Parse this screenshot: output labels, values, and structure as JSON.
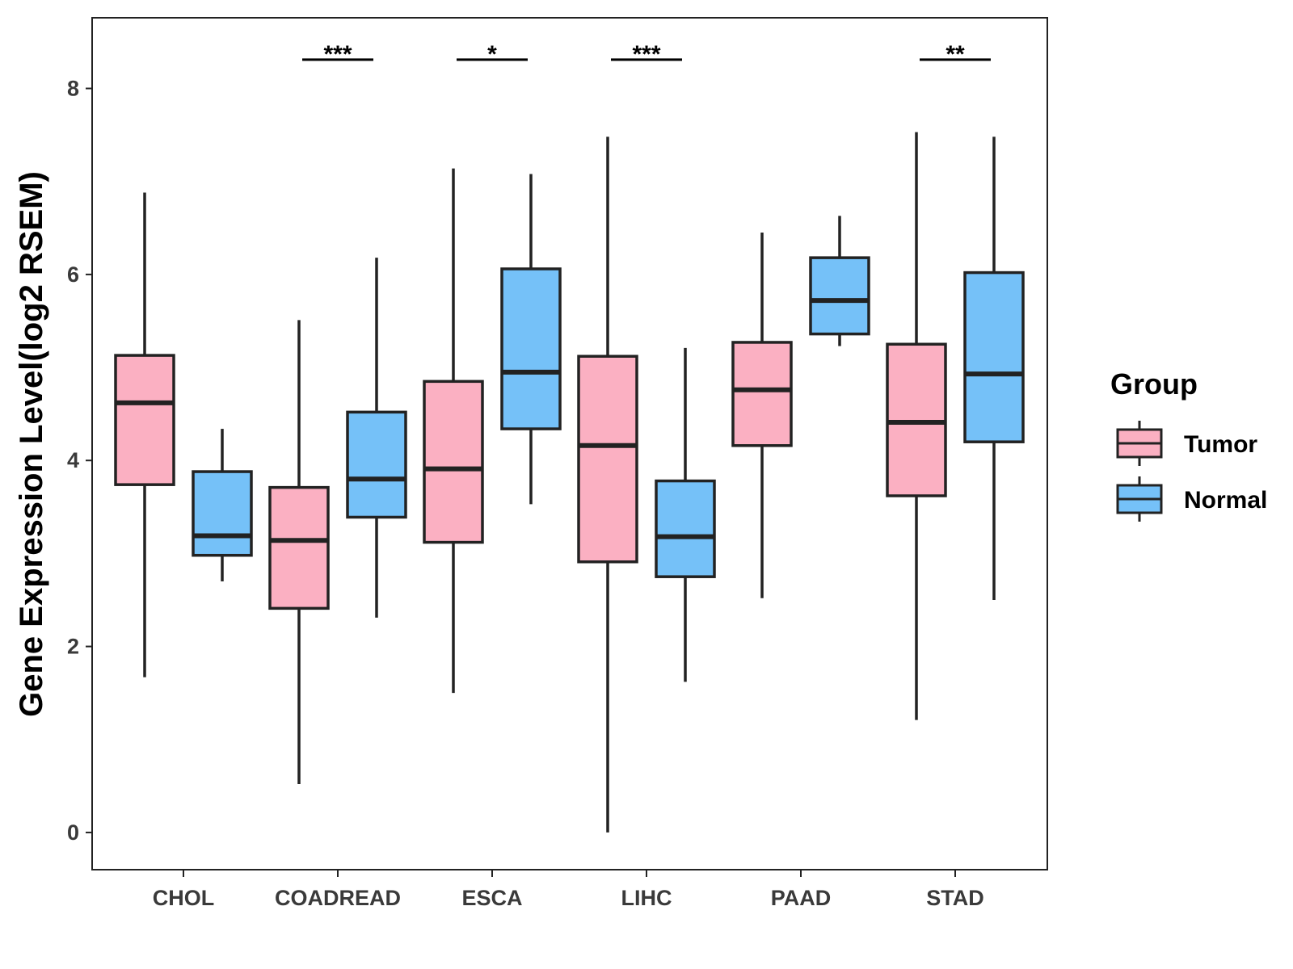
{
  "chart_data": {
    "type": "boxplot",
    "ylabel": "Gene Expression Level(log2 RSEM)",
    "xlabel": "",
    "ylim": [
      -0.4,
      8.76
    ],
    "yticks": [
      0,
      2,
      4,
      6,
      8
    ],
    "categories": [
      "CHOL",
      "COADREAD",
      "ESCA",
      "LIHC",
      "PAAD",
      "STAD"
    ],
    "series": [
      {
        "name": "Tumor",
        "color": "#FBB0C2",
        "boxes": [
          {
            "min": 1.67,
            "q1": 3.74,
            "median": 4.62,
            "q3": 5.13,
            "max": 6.88
          },
          {
            "min": 0.52,
            "q1": 2.41,
            "median": 3.14,
            "q3": 3.71,
            "max": 5.51
          },
          {
            "min": 1.5,
            "q1": 3.12,
            "median": 3.91,
            "q3": 4.85,
            "max": 7.14
          },
          {
            "min": 0.0,
            "q1": 2.91,
            "median": 4.16,
            "q3": 5.12,
            "max": 7.48
          },
          {
            "min": 2.52,
            "q1": 4.16,
            "median": 4.76,
            "q3": 5.27,
            "max": 6.45
          },
          {
            "min": 1.21,
            "q1": 3.62,
            "median": 4.41,
            "q3": 5.25,
            "max": 7.53
          }
        ]
      },
      {
        "name": "Normal",
        "color": "#75C1F8",
        "boxes": [
          {
            "min": 2.7,
            "q1": 2.98,
            "median": 3.19,
            "q3": 3.88,
            "max": 4.34
          },
          {
            "min": 2.31,
            "q1": 3.39,
            "median": 3.8,
            "q3": 4.52,
            "max": 6.18
          },
          {
            "min": 3.53,
            "q1": 4.34,
            "median": 4.95,
            "q3": 6.06,
            "max": 7.08
          },
          {
            "min": 1.62,
            "q1": 2.75,
            "median": 3.18,
            "q3": 3.78,
            "max": 5.21
          },
          {
            "min": 5.23,
            "q1": 5.36,
            "median": 5.72,
            "q3": 6.18,
            "max": 6.63
          },
          {
            "min": 2.5,
            "q1": 4.2,
            "median": 4.93,
            "q3": 6.02,
            "max": 7.48
          }
        ]
      }
    ],
    "significance": [
      {
        "category": "CHOL",
        "label": ""
      },
      {
        "category": "COADREAD",
        "label": "***"
      },
      {
        "category": "ESCA",
        "label": "*"
      },
      {
        "category": "LIHC",
        "label": "***"
      },
      {
        "category": "PAAD",
        "label": ""
      },
      {
        "category": "STAD",
        "label": "**"
      }
    ],
    "significance_bar_y": 8.31,
    "legend": {
      "title": "Group",
      "position": "right",
      "entries": [
        "Tumor",
        "Normal"
      ]
    }
  }
}
